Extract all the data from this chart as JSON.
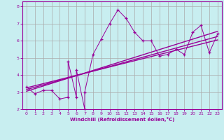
{
  "title": "",
  "xlabel": "Windchill (Refroidissement éolien,°C)",
  "ylabel": "",
  "background_color": "#c8eef0",
  "line_color": "#990099",
  "grid_color": "#aaaaaa",
  "xlim": [
    -0.5,
    23.5
  ],
  "ylim": [
    2,
    8.3
  ],
  "yticks": [
    2,
    3,
    4,
    5,
    6,
    7,
    8
  ],
  "xticks": [
    0,
    1,
    2,
    3,
    4,
    5,
    6,
    7,
    8,
    9,
    10,
    11,
    12,
    13,
    14,
    15,
    16,
    17,
    18,
    19,
    20,
    21,
    22,
    23
  ],
  "scatter_x": [
    0,
    1,
    2,
    3,
    4,
    5,
    5,
    6,
    6,
    7,
    7,
    8,
    9,
    10,
    11,
    12,
    13,
    14,
    15,
    16,
    17,
    18,
    19,
    20,
    21,
    22,
    23
  ],
  "scatter_y": [
    3.3,
    2.9,
    3.1,
    3.1,
    2.6,
    2.7,
    4.8,
    2.7,
    4.3,
    2.0,
    3.0,
    5.2,
    6.1,
    7.0,
    7.8,
    7.3,
    6.5,
    6.0,
    6.0,
    5.1,
    5.2,
    5.5,
    5.2,
    6.5,
    6.9,
    5.3,
    6.4
  ],
  "line1_x": [
    0,
    23
  ],
  "line1_y": [
    3.05,
    6.55
  ],
  "line2_x": [
    0,
    23
  ],
  "line2_y": [
    3.15,
    6.25
  ],
  "line3_x": [
    0,
    23
  ],
  "line3_y": [
    3.25,
    6.05
  ]
}
